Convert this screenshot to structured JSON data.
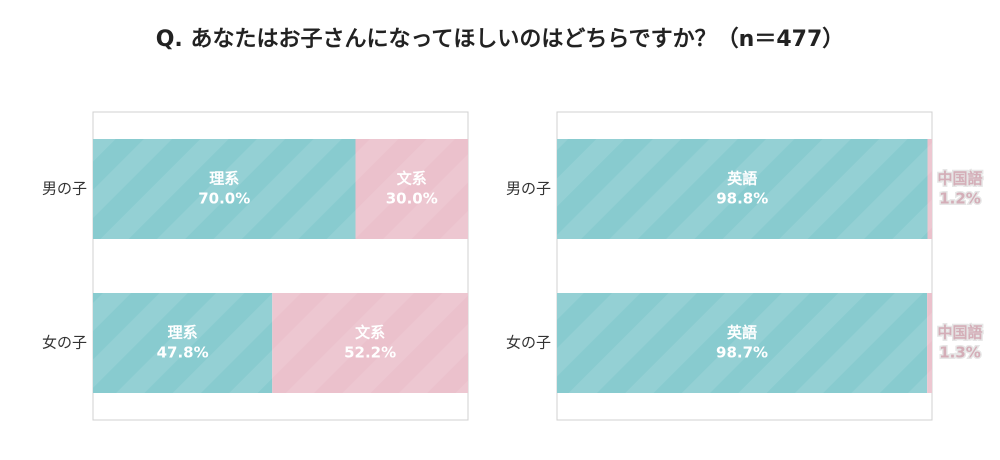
{
  "title": "Q. あなたはお子さんになってほしいのはどちらですか？（n＝477）",
  "chart_data": [
    {
      "type": "bar",
      "orientation": "horizontal",
      "stacked": true,
      "xlim": [
        0,
        100
      ],
      "categories": [
        "男の子",
        "女の子"
      ],
      "series": [
        {
          "name": "理系",
          "color": "#88cbcf",
          "values": [
            70.0,
            47.8
          ],
          "value_labels": [
            "70.0%",
            "47.8%"
          ]
        },
        {
          "name": "文系",
          "color": "#ebc1cc",
          "values": [
            30.0,
            52.2
          ],
          "value_labels": [
            "30.0%",
            "52.2%"
          ]
        }
      ]
    },
    {
      "type": "bar",
      "orientation": "horizontal",
      "stacked": true,
      "xlim": [
        0,
        100
      ],
      "categories": [
        "男の子",
        "女の子"
      ],
      "series": [
        {
          "name": "英語",
          "color": "#88cbcf",
          "values": [
            98.8,
            98.7
          ],
          "value_labels": [
            "98.8%",
            "98.7%"
          ]
        },
        {
          "name": "中国語",
          "color": "#ebc1cc",
          "values": [
            1.2,
            1.3
          ],
          "value_labels": [
            "1.2%",
            "1.3%"
          ]
        }
      ]
    }
  ]
}
